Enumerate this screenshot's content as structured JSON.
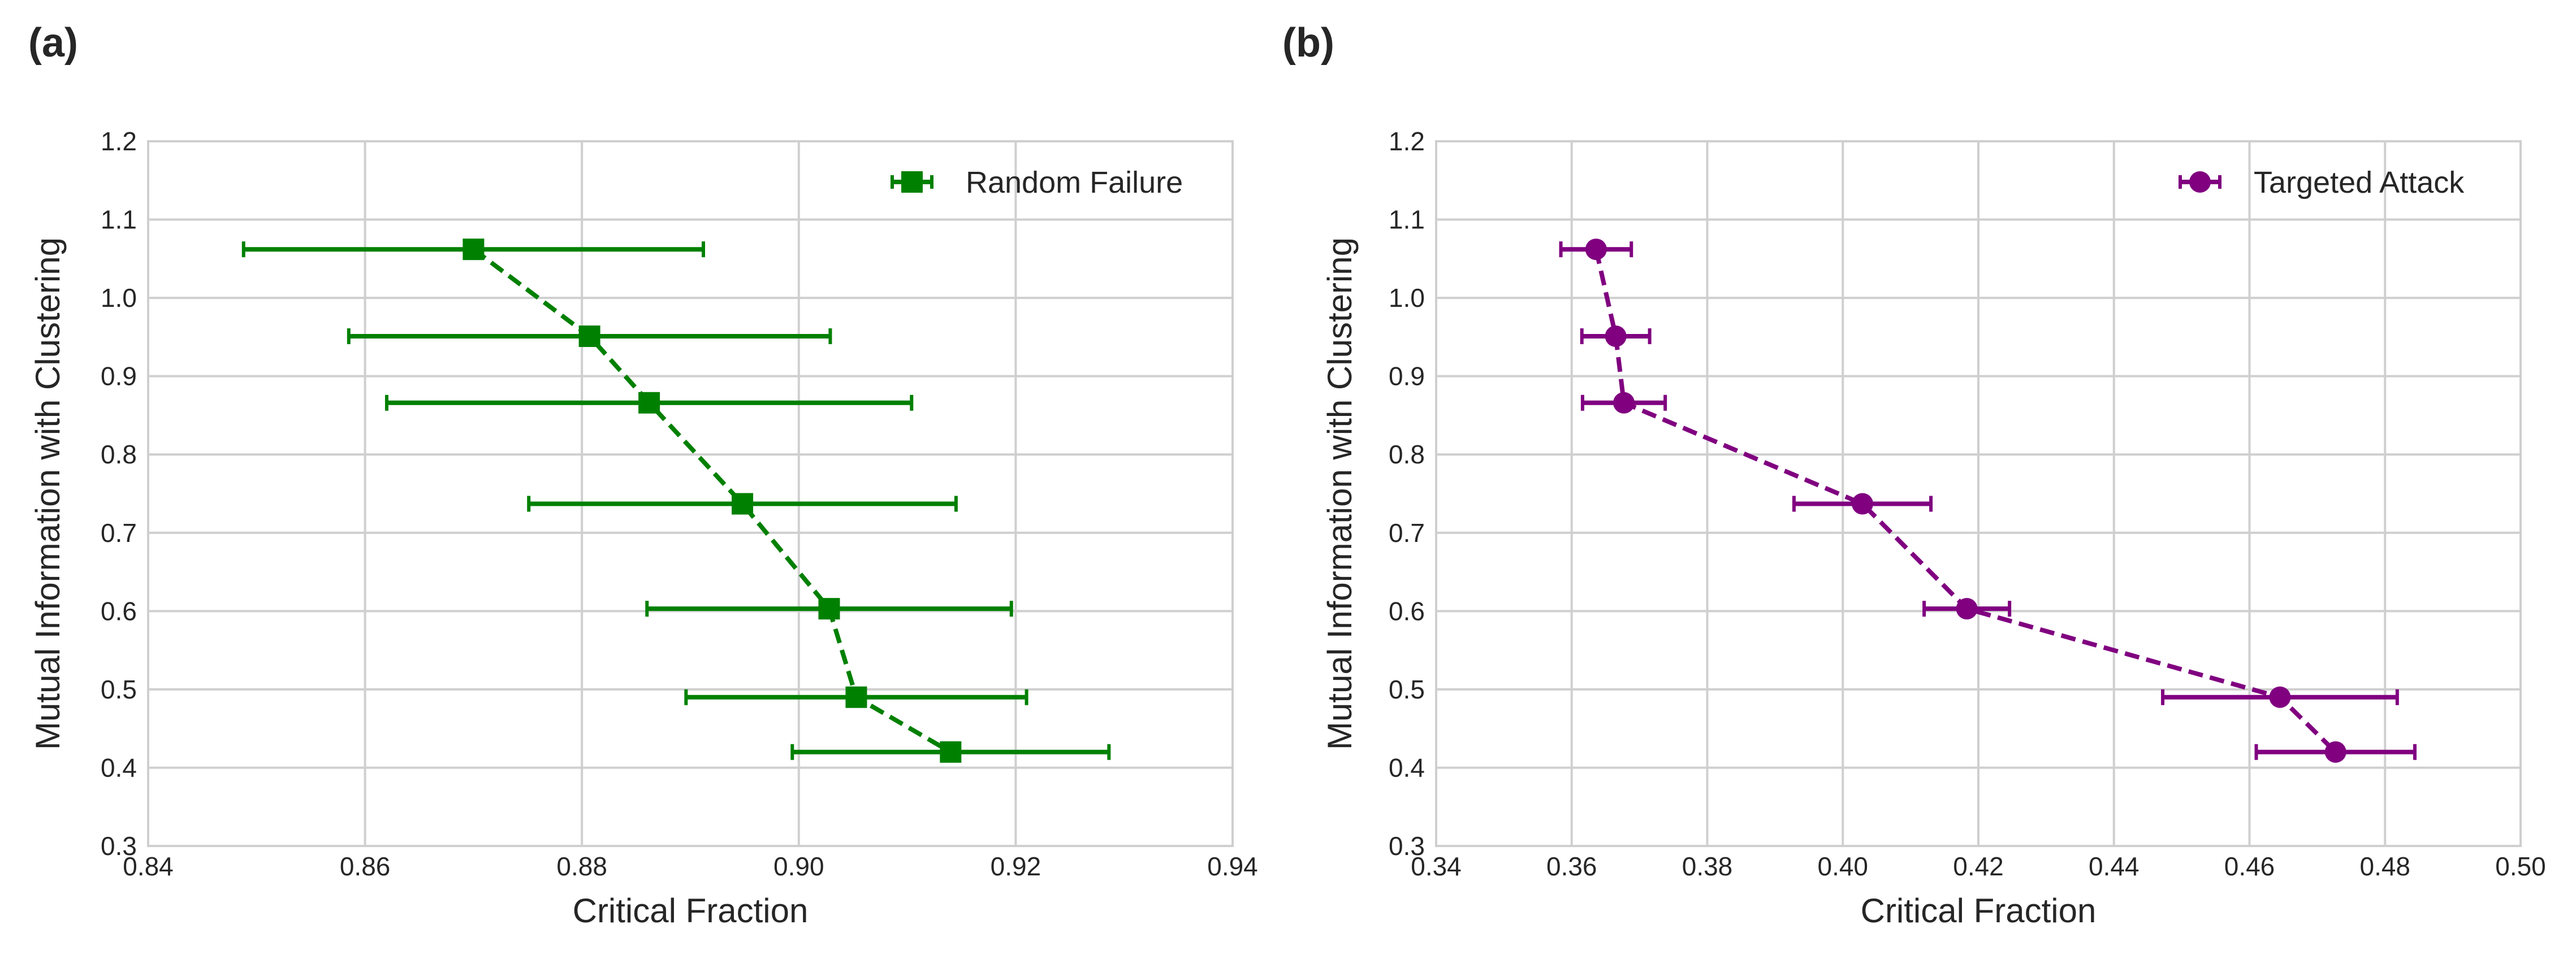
{
  "chart_data": [
    {
      "type": "scatter",
      "panel_label": "(a)",
      "xlabel": "Critical Fraction",
      "ylabel": "Mutual Information with Clustering",
      "xlim": [
        0.84,
        0.94
      ],
      "ylim": [
        0.3,
        1.2
      ],
      "xticks": [
        "0.84",
        "0.86",
        "0.88",
        "0.90",
        "0.92",
        "0.94"
      ],
      "yticks": [
        "0.3",
        "0.4",
        "0.5",
        "0.6",
        "0.7",
        "0.8",
        "0.9",
        "1.0",
        "1.1",
        "1.2"
      ],
      "grid": true,
      "legend_position": "top-right",
      "series": [
        {
          "name": "Random Failure",
          "color": "#008000",
          "marker": "square",
          "line_style": "dashed",
          "points": [
            {
              "x": 0.87,
              "y": 1.062,
              "xerr": 0.0212
            },
            {
              "x": 0.8807,
              "y": 0.951,
              "xerr": 0.0222
            },
            {
              "x": 0.8862,
              "y": 0.866,
              "xerr": 0.0242
            },
            {
              "x": 0.8948,
              "y": 0.737,
              "xerr": 0.0197
            },
            {
              "x": 0.9028,
              "y": 0.603,
              "xerr": 0.0168
            },
            {
              "x": 0.9053,
              "y": 0.49,
              "xerr": 0.0157
            },
            {
              "x": 0.914,
              "y": 0.42,
              "xerr": 0.0146
            }
          ]
        }
      ]
    },
    {
      "type": "scatter",
      "panel_label": "(b)",
      "xlabel": "Critical Fraction",
      "ylabel": "Mutual Information with Clustering",
      "xlim": [
        0.34,
        0.5
      ],
      "ylim": [
        0.3,
        1.2
      ],
      "xticks": [
        "0.34",
        "0.36",
        "0.38",
        "0.40",
        "0.42",
        "0.44",
        "0.46",
        "0.48",
        "0.50"
      ],
      "yticks": [
        "0.3",
        "0.4",
        "0.5",
        "0.6",
        "0.7",
        "0.8",
        "0.9",
        "1.0",
        "1.1",
        "1.2"
      ],
      "grid": true,
      "legend_position": "top-right",
      "series": [
        {
          "name": "Targeted Attack",
          "color": "#800080",
          "marker": "circle",
          "line_style": "dashed",
          "points": [
            {
              "x": 0.3636,
              "y": 1.062,
              "xerr": 0.0052
            },
            {
              "x": 0.3665,
              "y": 0.951,
              "xerr": 0.005
            },
            {
              "x": 0.3677,
              "y": 0.866,
              "xerr": 0.0061
            },
            {
              "x": 0.4029,
              "y": 0.737,
              "xerr": 0.0101
            },
            {
              "x": 0.4183,
              "y": 0.603,
              "xerr": 0.0063
            },
            {
              "x": 0.4645,
              "y": 0.49,
              "xerr": 0.0173
            },
            {
              "x": 0.4727,
              "y": 0.42,
              "xerr": 0.0117
            }
          ]
        }
      ]
    }
  ]
}
